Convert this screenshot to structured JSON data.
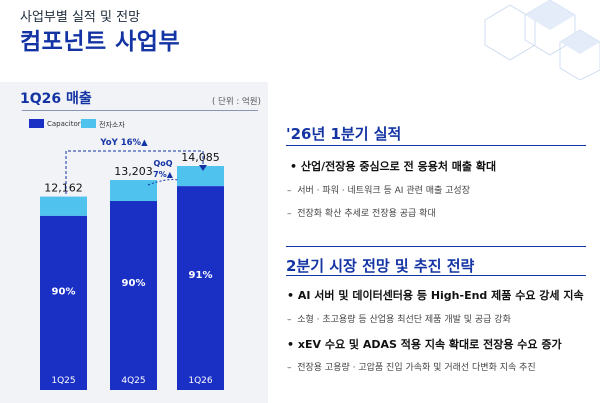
{
  "header": {
    "pretitle": "사업부별 실적 및 전망",
    "title": "컴포넌트 사업부"
  },
  "chart_panel": {
    "title": "1Q26 매출",
    "unit": "( 단위 : 억원)",
    "legend": [
      {
        "label": "Capacitors",
        "color": "#1a2fc4"
      },
      {
        "label": "전자소자",
        "color": "#4fc3ee"
      }
    ]
  },
  "chart_data": {
    "type": "bar",
    "stacked": true,
    "categories": [
      "1Q25",
      "4Q25",
      "1Q26"
    ],
    "totals": [
      "12,162",
      "13,203",
      "14,085"
    ],
    "total_values": [
      12162,
      13203,
      14085
    ],
    "series": [
      {
        "name": "Capacitors",
        "color": "#1a2fc4",
        "share_labels": [
          "90%",
          "90%",
          "91%"
        ],
        "shares": [
          0.9,
          0.9,
          0.91
        ]
      },
      {
        "name": "전자소자",
        "color": "#4fc3ee",
        "shares": [
          0.1,
          0.1,
          0.09
        ]
      }
    ],
    "annotations": {
      "yoy": "YoY 16%▲",
      "qoq_line1": "QoQ",
      "qoq_line2": "7%▲"
    }
  },
  "sections": [
    {
      "title": "'26년 1분기 실적",
      "bullets": [
        {
          "text": "산업/전장용 중심으로 전 응용처 매출 확대",
          "subs": [
            "서버 · 파워 · 네트워크 등 AI 관련 매출 고성장",
            "전장화 확산 추세로 전장용 공급 확대"
          ]
        }
      ]
    },
    {
      "title": "2분기 시장 전망 및 추진 전략",
      "bullets": [
        {
          "text": "AI 서버 및 데이터센터용 등 High-End 제품 수요 강세 지속",
          "subs": [
            "소형 · 초고용량 등 산업용 최선단 제품 개발 및 공급 강화"
          ]
        },
        {
          "text": "xEV 수요 및 ADAS 적용 지속 확대로 전장용 수요 증가",
          "subs": [
            "전장용 고용량 · 고압품 진입 가속화 및 거래선 다변화 지속 추진"
          ]
        }
      ]
    }
  ],
  "dash": "–"
}
